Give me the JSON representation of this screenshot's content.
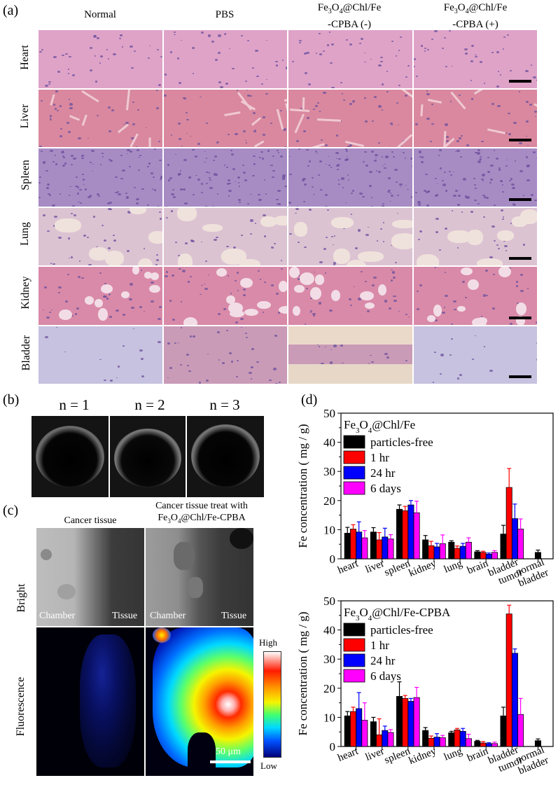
{
  "panel_labels": {
    "a": "(a)",
    "b": "(b)",
    "c": "(c)",
    "d": "(d)"
  },
  "panel_a": {
    "columns": [
      {
        "line1": "Normal",
        "line2": ""
      },
      {
        "line1": "PBS",
        "line2": ""
      },
      {
        "line1": "Fe3O4@Chl/Fe",
        "line2": "-CPBA (-)"
      },
      {
        "line1": "Fe3O4@Chl/Fe",
        "line2": "-CPBA (+)"
      }
    ],
    "rows": [
      "Heart",
      "Liver",
      "Spleen",
      "Lung",
      "Kidney",
      "Bladder"
    ],
    "colors": {
      "heart": "#dfa3c8",
      "liver": "#d9889f",
      "spleen": "#a78cc4",
      "lung": "#dcc3d2",
      "kidney": "#d98aa8",
      "bladder_pale": "#c7c2df",
      "bladder_tissue": "#c99bb7"
    }
  },
  "panel_b": {
    "labels": [
      "n = 1",
      "n = 2",
      "n = 3"
    ]
  },
  "panel_c": {
    "col1": "Cancer tissue",
    "col2_line1": "Cancer tissue treat with",
    "col2_line2": "Fe3O4@Chl/Fe-CPBA",
    "row_bright": "Bright",
    "row_fluor": "Fluorescence",
    "chamber": "Chamber",
    "tissue": "Tissue",
    "colorbar_high": "High",
    "colorbar_low": "Low",
    "scale": "50 μm"
  },
  "chart_data": [
    {
      "type": "bar",
      "title": "Fe3O4@Chl/Fe",
      "ylabel": "Fe concentration ( mg / g)",
      "ylim": [
        0,
        50
      ],
      "yticks": [
        0,
        10,
        20,
        30,
        40,
        50
      ],
      "categories": [
        "heart",
        "liver",
        "spleen",
        "kidney",
        "lung",
        "brain",
        "bladder tumor",
        "normal bladder"
      ],
      "legend_position": "top-left",
      "series": [
        {
          "name": "particles-free",
          "color": "#000000",
          "values": [
            8.8,
            9.2,
            17.0,
            6.5,
            5.7,
            2.4,
            8.5,
            2.2
          ],
          "errors": [
            2.0,
            1.5,
            1.5,
            1.5,
            0.5,
            0.4,
            3.0,
            0.8
          ]
        },
        {
          "name": "1 hr",
          "color": "#ff0000",
          "values": [
            10.2,
            6.5,
            16.5,
            4.5,
            3.6,
            2.2,
            24.5,
            null
          ],
          "errors": [
            1.5,
            2.5,
            1.5,
            1.5,
            0.8,
            0.4,
            6.5,
            null
          ]
        },
        {
          "name": "24 hr",
          "color": "#0000ff",
          "values": [
            9.2,
            7.5,
            18.5,
            4.1,
            4.3,
            1.6,
            13.8,
            null
          ],
          "errors": [
            3.5,
            3.0,
            1.5,
            1.2,
            1.0,
            0.4,
            5.0,
            null
          ]
        },
        {
          "name": "6 days",
          "color": "#ff00ff",
          "values": [
            7.2,
            6.8,
            15.8,
            5.2,
            5.7,
            2.2,
            10.2,
            null
          ],
          "errors": [
            2.5,
            1.5,
            4.0,
            3.0,
            1.5,
            0.6,
            3.5,
            null
          ]
        }
      ]
    },
    {
      "type": "bar",
      "title": "Fe3O4@Chl/Fe-CPBA",
      "ylabel": "Fe concentration ( mg / g)",
      "ylim": [
        0,
        50
      ],
      "yticks": [
        0,
        10,
        20,
        30,
        40,
        50
      ],
      "categories": [
        "heart",
        "liver",
        "spleen",
        "kidney",
        "lung",
        "brain",
        "bladder tumor",
        "normal bladder"
      ],
      "legend_position": "top-left",
      "series": [
        {
          "name": "particles-free",
          "color": "#000000",
          "values": [
            10.5,
            8.5,
            17.2,
            5.5,
            4.7,
            1.8,
            10.5,
            2.0
          ],
          "errors": [
            1.5,
            1.5,
            5.0,
            1.0,
            0.5,
            0.3,
            3.0,
            0.6
          ]
        },
        {
          "name": "1 hr",
          "color": "#ff0000",
          "values": [
            12.0,
            4.0,
            16.5,
            2.8,
            5.7,
            1.2,
            45.5,
            null
          ],
          "errors": [
            1.5,
            5.5,
            1.0,
            0.8,
            0.5,
            0.5,
            3.0,
            null
          ]
        },
        {
          "name": "24 hr",
          "color": "#0000ff",
          "values": [
            13.0,
            5.5,
            15.5,
            3.2,
            5.2,
            1.0,
            32.0,
            null
          ],
          "errors": [
            5.5,
            1.5,
            1.0,
            1.2,
            1.0,
            0.3,
            1.5,
            null
          ]
        },
        {
          "name": "6 days",
          "color": "#ff00ff",
          "values": [
            9.0,
            4.8,
            16.8,
            3.0,
            2.7,
            1.0,
            11.0,
            null
          ],
          "errors": [
            6.0,
            1.0,
            3.5,
            0.8,
            1.5,
            0.5,
            5.5,
            null
          ]
        }
      ]
    }
  ]
}
